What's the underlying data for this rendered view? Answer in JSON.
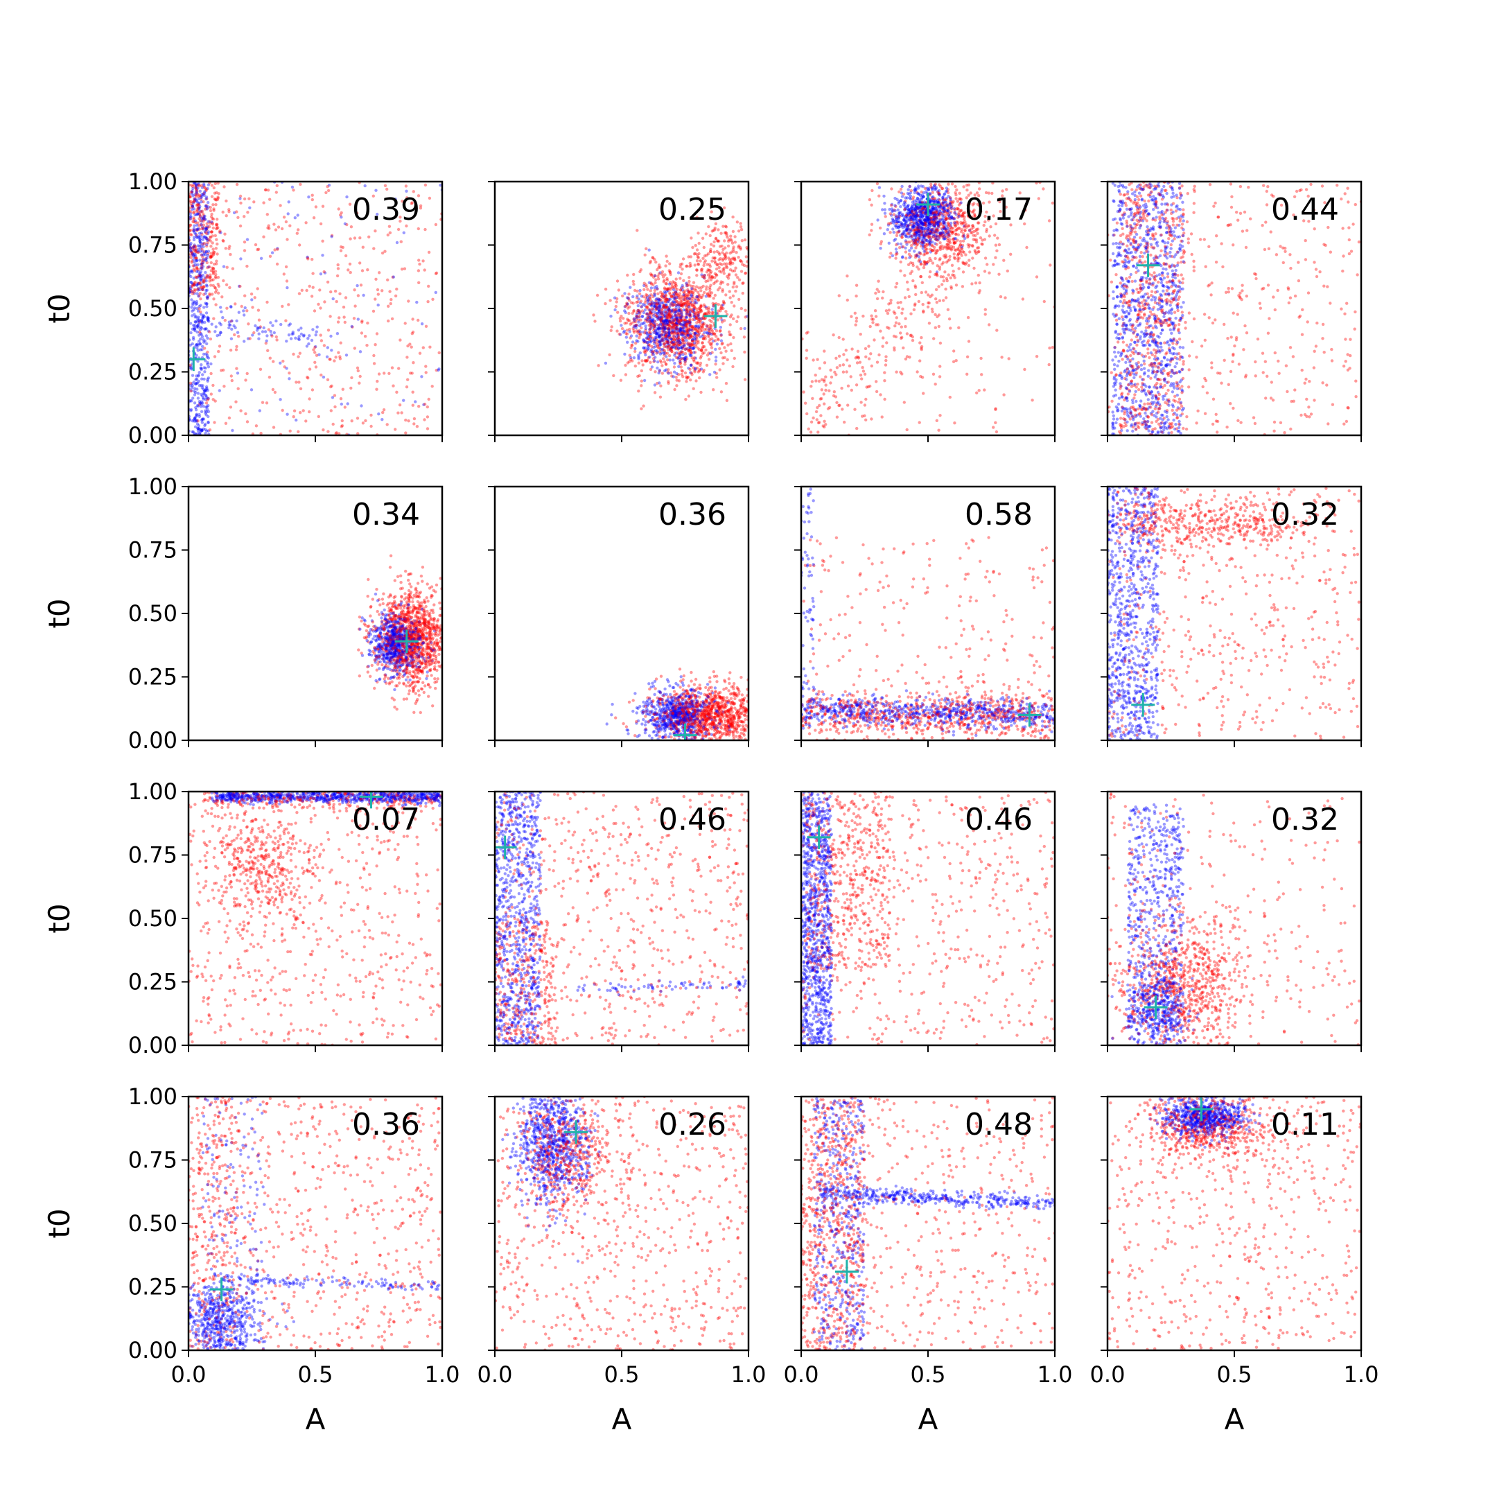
{
  "figure": {
    "x_axis_label": "A",
    "y_axis_label": "t0",
    "x_tick_labels": [
      "0.0",
      "0.5",
      "1.0"
    ],
    "y_tick_labels": [
      "0.00",
      "0.25",
      "0.50",
      "0.75",
      "1.00"
    ]
  },
  "chart_data": {
    "type": "scatter",
    "layout": "4x4 grid of subplots, shared axes",
    "xlim": [
      0,
      1
    ],
    "ylim": [
      0,
      1
    ],
    "xticks": [
      0,
      0.5,
      1.0
    ],
    "yticks": [
      0,
      0.25,
      0.5,
      0.75,
      1.0
    ],
    "xlabel": "A",
    "ylabel": "t0",
    "grid": false,
    "colors": {
      "series_a": "#0000ff",
      "series_b": "#ff0000",
      "marker": "#20b2aa"
    },
    "panels": [
      {
        "label": "0.39",
        "marker": [
          0.02,
          0.3
        ],
        "blue": [
          {
            "type": "band",
            "x": [
              0,
              0.08
            ],
            "y": [
              0,
              1
            ],
            "n": 520
          },
          {
            "type": "line",
            "from": [
              0.05,
              0.45
            ],
            "to": [
              0.55,
              0.38
            ],
            "sd": 0.03,
            "n": 80
          },
          {
            "type": "uniform",
            "x": [
              0,
              1
            ],
            "y": [
              0,
              1
            ],
            "n": 90
          }
        ],
        "red": [
          {
            "type": "band",
            "x": [
              0,
              0.12
            ],
            "y": [
              0.55,
              1
            ],
            "n": 260
          },
          {
            "type": "uniform",
            "x": [
              0,
              1
            ],
            "y": [
              0,
              1
            ],
            "n": 480
          }
        ]
      },
      {
        "label": "0.25",
        "marker": [
          0.87,
          0.47
        ],
        "blue": [
          {
            "type": "gauss",
            "c": [
              0.68,
              0.43
            ],
            "s": [
              0.08,
              0.08
            ],
            "n": 650
          }
        ],
        "red": [
          {
            "type": "gauss",
            "c": [
              0.72,
              0.45
            ],
            "s": [
              0.11,
              0.11
            ],
            "n": 1150
          },
          {
            "type": "gauss",
            "c": [
              0.9,
              0.7
            ],
            "s": [
              0.06,
              0.08
            ],
            "n": 200
          }
        ]
      },
      {
        "label": "0.17",
        "marker": [
          0.5,
          0.91
        ],
        "blue": [
          {
            "type": "gauss",
            "c": [
              0.48,
              0.86
            ],
            "s": [
              0.06,
              0.06
            ],
            "n": 750
          }
        ],
        "red": [
          {
            "type": "gauss",
            "c": [
              0.55,
              0.82
            ],
            "s": [
              0.1,
              0.08
            ],
            "n": 550
          },
          {
            "type": "line",
            "from": [
              0,
              0
            ],
            "to": [
              0.7,
              0.85
            ],
            "sd": 0.12,
            "n": 420
          },
          {
            "type": "uniform",
            "x": [
              0.3,
              1
            ],
            "y": [
              0,
              1
            ],
            "n": 100
          }
        ]
      },
      {
        "label": "0.44",
        "marker": [
          0.16,
          0.67
        ],
        "blue": [
          {
            "type": "band",
            "x": [
              0.02,
              0.3
            ],
            "y": [
              0,
              1
            ],
            "n": 950
          }
        ],
        "red": [
          {
            "type": "band",
            "x": [
              0.05,
              0.3
            ],
            "y": [
              0,
              1
            ],
            "n": 520
          },
          {
            "type": "uniform",
            "x": [
              0,
              1
            ],
            "y": [
              0,
              1
            ],
            "n": 420
          }
        ]
      },
      {
        "label": "0.34",
        "marker": [
          0.86,
          0.39
        ],
        "blue": [
          {
            "type": "gauss",
            "c": [
              0.82,
              0.38
            ],
            "s": [
              0.05,
              0.06
            ],
            "n": 620
          }
        ],
        "red": [
          {
            "type": "gauss",
            "c": [
              0.88,
              0.4
            ],
            "s": [
              0.07,
              0.1
            ],
            "n": 1150
          }
        ]
      },
      {
        "label": "0.36",
        "marker": [
          0.75,
          0.02
        ],
        "blue": [
          {
            "type": "gauss",
            "c": [
              0.72,
              0.1
            ],
            "s": [
              0.07,
              0.05
            ],
            "n": 650
          }
        ],
        "red": [
          {
            "type": "gauss",
            "c": [
              0.85,
              0.1
            ],
            "s": [
              0.11,
              0.06
            ],
            "n": 1050
          }
        ]
      },
      {
        "label": "0.58",
        "marker": [
          0.9,
          0.1
        ],
        "blue": [
          {
            "type": "line",
            "from": [
              0,
              0.12
            ],
            "to": [
              1,
              0.1
            ],
            "sd": 0.03,
            "n": 700
          },
          {
            "type": "band",
            "x": [
              0,
              0.05
            ],
            "y": [
              0.2,
              1
            ],
            "n": 60
          }
        ],
        "red": [
          {
            "type": "line",
            "from": [
              0,
              0.1
            ],
            "to": [
              1,
              0.1
            ],
            "sd": 0.05,
            "n": 700
          },
          {
            "type": "uniform",
            "x": [
              0,
              1
            ],
            "y": [
              0,
              0.8
            ],
            "n": 220
          }
        ]
      },
      {
        "label": "0.32",
        "marker": [
          0.14,
          0.14
        ],
        "blue": [
          {
            "type": "band",
            "x": [
              0,
              0.2
            ],
            "y": [
              0,
              1
            ],
            "n": 800
          }
        ],
        "red": [
          {
            "type": "line",
            "from": [
              0.05,
              0.85
            ],
            "to": [
              0.7,
              0.85
            ],
            "sd": 0.05,
            "n": 400
          },
          {
            "type": "uniform",
            "x": [
              0,
              1
            ],
            "y": [
              0,
              1
            ],
            "n": 480
          }
        ]
      },
      {
        "label": "0.07",
        "marker": [
          0.72,
          0.98
        ],
        "blue": [
          {
            "type": "line",
            "from": [
              0.1,
              0.98
            ],
            "to": [
              1,
              0.98
            ],
            "sd": 0.012,
            "n": 750
          }
        ],
        "red": [
          {
            "type": "line",
            "from": [
              0.05,
              0.97
            ],
            "to": [
              1,
              0.97
            ],
            "sd": 0.02,
            "n": 250
          },
          {
            "type": "gauss",
            "c": [
              0.28,
              0.72
            ],
            "s": [
              0.12,
              0.12
            ],
            "n": 400
          },
          {
            "type": "uniform",
            "x": [
              0,
              1
            ],
            "y": [
              0,
              1
            ],
            "n": 550
          }
        ]
      },
      {
        "label": "0.46",
        "marker": [
          0.04,
          0.78
        ],
        "blue": [
          {
            "type": "band",
            "x": [
              0,
              0.18
            ],
            "y": [
              0,
              1
            ],
            "n": 820
          },
          {
            "type": "line",
            "from": [
              0.3,
              0.22
            ],
            "to": [
              1,
              0.24
            ],
            "sd": 0.01,
            "n": 70
          }
        ],
        "red": [
          {
            "type": "band",
            "x": [
              0,
              0.25
            ],
            "y": [
              0,
              0.5
            ],
            "n": 260
          },
          {
            "type": "uniform",
            "x": [
              0,
              1
            ],
            "y": [
              0,
              1
            ],
            "n": 620
          }
        ]
      },
      {
        "label": "0.46",
        "marker": [
          0.07,
          0.82
        ],
        "blue": [
          {
            "type": "band",
            "x": [
              0,
              0.12
            ],
            "y": [
              0,
              1
            ],
            "n": 920
          }
        ],
        "red": [
          {
            "type": "band",
            "x": [
              0.02,
              0.35
            ],
            "y": [
              0.3,
              1
            ],
            "n": 480
          },
          {
            "type": "uniform",
            "x": [
              0,
              1
            ],
            "y": [
              0,
              1
            ],
            "n": 460
          }
        ]
      },
      {
        "label": "0.32",
        "marker": [
          0.19,
          0.15
        ],
        "blue": [
          {
            "type": "band",
            "x": [
              0.08,
              0.3
            ],
            "y": [
              0,
              0.95
            ],
            "n": 620
          },
          {
            "type": "gauss",
            "c": [
              0.2,
              0.15
            ],
            "s": [
              0.06,
              0.06
            ],
            "n": 280
          }
        ],
        "red": [
          {
            "type": "gauss",
            "c": [
              0.3,
              0.25
            ],
            "s": [
              0.13,
              0.13
            ],
            "n": 750
          },
          {
            "type": "uniform",
            "x": [
              0,
              1
            ],
            "y": [
              0,
              1
            ],
            "n": 240
          }
        ]
      },
      {
        "label": "0.36",
        "marker": [
          0.13,
          0.24
        ],
        "blue": [
          {
            "type": "gauss",
            "c": [
              0.12,
              0.12
            ],
            "s": [
              0.08,
              0.08
            ],
            "n": 560
          },
          {
            "type": "line",
            "from": [
              0.15,
              0.28
            ],
            "to": [
              1,
              0.25
            ],
            "sd": 0.01,
            "n": 120
          },
          {
            "type": "band",
            "x": [
              0.05,
              0.3
            ],
            "y": [
              0,
              1
            ],
            "n": 160
          }
        ],
        "red": [
          {
            "type": "band",
            "x": [
              0,
              0.2
            ],
            "y": [
              0,
              1
            ],
            "n": 250
          },
          {
            "type": "uniform",
            "x": [
              0,
              1
            ],
            "y": [
              0,
              1
            ],
            "n": 600
          }
        ]
      },
      {
        "label": "0.26",
        "marker": [
          0.32,
          0.86
        ],
        "blue": [
          {
            "type": "gauss",
            "c": [
              0.22,
              0.82
            ],
            "s": [
              0.07,
              0.12
            ],
            "n": 750
          }
        ],
        "red": [
          {
            "type": "gauss",
            "c": [
              0.28,
              0.78
            ],
            "s": [
              0.1,
              0.12
            ],
            "n": 450
          },
          {
            "type": "uniform",
            "x": [
              0,
              1
            ],
            "y": [
              0,
              1
            ],
            "n": 600
          }
        ]
      },
      {
        "label": "0.48",
        "marker": [
          0.18,
          0.31
        ],
        "blue": [
          {
            "type": "line",
            "from": [
              0.08,
              0.62
            ],
            "to": [
              1,
              0.58
            ],
            "sd": 0.015,
            "n": 380
          },
          {
            "type": "band",
            "x": [
              0.05,
              0.25
            ],
            "y": [
              0,
              1
            ],
            "n": 460
          }
        ],
        "red": [
          {
            "type": "band",
            "x": [
              0,
              0.25
            ],
            "y": [
              0,
              1
            ],
            "n": 600
          },
          {
            "type": "uniform",
            "x": [
              0,
              1
            ],
            "y": [
              0,
              1
            ],
            "n": 450
          }
        ]
      },
      {
        "label": "0.11",
        "marker": [
          0.37,
          0.95
        ],
        "blue": [
          {
            "type": "gauss",
            "c": [
              0.38,
              0.92
            ],
            "s": [
              0.08,
              0.04
            ],
            "n": 650
          }
        ],
        "red": [
          {
            "type": "gauss",
            "c": [
              0.4,
              0.88
            ],
            "s": [
              0.12,
              0.07
            ],
            "n": 500
          },
          {
            "type": "uniform",
            "x": [
              0,
              1
            ],
            "y": [
              0,
              1
            ],
            "n": 550
          }
        ]
      }
    ]
  }
}
